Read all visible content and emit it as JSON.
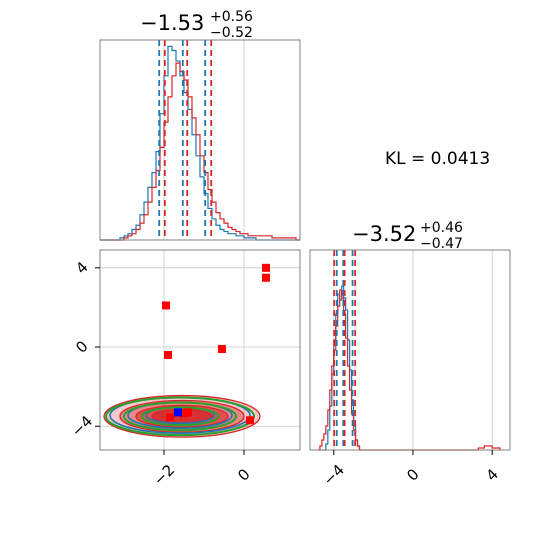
{
  "chart_data": {
    "type": "corner",
    "colors": {
      "blue": "#1f77b4",
      "red": "#d62728",
      "green": "#2ca02c",
      "marker_red": "#ff0000",
      "marker_blue": "#0000ff"
    },
    "annotation": {
      "text": "KL = 0.0413"
    },
    "param1": {
      "title": {
        "value": "−1.53",
        "plus": "+0.56",
        "minus": "−0.52"
      },
      "range": [
        -3.6,
        1.4
      ],
      "ticks": [
        -2,
        0
      ],
      "tick_labels": [
        "−2",
        "0"
      ],
      "blue_quantiles": [
        -2.12,
        -1.53,
        -0.97
      ],
      "red_quantiles": [
        -1.98,
        -1.42,
        -0.82
      ],
      "bin_centers": [
        -3.55,
        -3.45,
        -3.35,
        -3.25,
        -3.15,
        -3.05,
        -2.95,
        -2.85,
        -2.75,
        -2.65,
        -2.55,
        -2.45,
        -2.35,
        -2.25,
        -2.15,
        -2.05,
        -1.95,
        -1.85,
        -1.75,
        -1.65,
        -1.55,
        -1.45,
        -1.35,
        -1.25,
        -1.15,
        -1.05,
        -0.95,
        -0.85,
        -0.75,
        -0.65,
        -0.55,
        -0.45,
        -0.35,
        -0.25,
        -0.15,
        -0.05,
        0.05,
        0.15,
        0.25,
        0.35,
        0.45,
        0.55,
        0.65,
        0.75,
        0.85,
        0.95,
        1.05,
        1.15,
        1.25,
        1.35
      ],
      "blue_hist": [
        0,
        0,
        0,
        0,
        0,
        0.01,
        0.02,
        0.03,
        0.05,
        0.07,
        0.12,
        0.18,
        0.25,
        0.32,
        0.42,
        0.6,
        0.78,
        0.92,
        0.9,
        0.85,
        0.78,
        0.7,
        0.62,
        0.5,
        0.4,
        0.3,
        0.22,
        0.15,
        0.1,
        0.07,
        0.05,
        0.04,
        0.03,
        0.03,
        0.02,
        0.02,
        0.01,
        0.01,
        0.01,
        0,
        0,
        0,
        0,
        0,
        0,
        0,
        0,
        0,
        0,
        0
      ],
      "red_hist": [
        0,
        0,
        0,
        0,
        0,
        0,
        0.01,
        0.02,
        0.03,
        0.05,
        0.08,
        0.12,
        0.18,
        0.25,
        0.33,
        0.44,
        0.56,
        0.68,
        0.78,
        0.84,
        0.8,
        0.76,
        0.68,
        0.58,
        0.5,
        0.4,
        0.32,
        0.24,
        0.18,
        0.13,
        0.1,
        0.08,
        0.06,
        0.05,
        0.04,
        0.03,
        0.03,
        0.02,
        0.02,
        0.02,
        0.02,
        0.02,
        0.02,
        0.01,
        0.01,
        0.01,
        0.01,
        0.01,
        0.01,
        0
      ]
    },
    "param2": {
      "title": {
        "value": "−3.52",
        "plus": "+0.46",
        "minus": "−0.47"
      },
      "range": [
        -5.2,
        4.9
      ],
      "ticks": [
        -4,
        0,
        4
      ],
      "tick_labels": [
        "−4",
        "0",
        "4"
      ],
      "blue_quantiles": [
        -3.85,
        -3.52,
        -3.05
      ],
      "red_quantiles": [
        -3.98,
        -3.45,
        -2.92
      ],
      "hist_ymax": 1.0,
      "blue_hist_points": [
        [
          -4.6,
          0
        ],
        [
          -4.4,
          0.03
        ],
        [
          -4.3,
          0.1
        ],
        [
          -4.2,
          0.22
        ],
        [
          -4.1,
          0.38
        ],
        [
          -4.0,
          0.55
        ],
        [
          -3.9,
          0.68
        ],
        [
          -3.8,
          0.78
        ],
        [
          -3.7,
          0.75
        ],
        [
          -3.6,
          0.82
        ],
        [
          -3.5,
          0.76
        ],
        [
          -3.4,
          0.7
        ],
        [
          -3.3,
          0.55
        ],
        [
          -3.2,
          0.4
        ],
        [
          -3.1,
          0.25
        ],
        [
          -3.0,
          0.12
        ],
        [
          -2.9,
          0.05
        ],
        [
          -2.8,
          0.02
        ],
        [
          -2.7,
          0
        ]
      ],
      "red_hist_points": [
        [
          -4.8,
          0
        ],
        [
          -4.7,
          0.02
        ],
        [
          -4.6,
          0.05
        ],
        [
          -4.5,
          0.08
        ],
        [
          -4.4,
          0.12
        ],
        [
          -4.3,
          0.2
        ],
        [
          -4.2,
          0.3
        ],
        [
          -4.1,
          0.42
        ],
        [
          -4.0,
          0.5
        ],
        [
          -3.9,
          0.62
        ],
        [
          -3.8,
          0.72
        ],
        [
          -3.7,
          0.8
        ],
        [
          -3.6,
          0.76
        ],
        [
          -3.5,
          0.68
        ],
        [
          -3.4,
          0.56
        ],
        [
          -3.3,
          0.42
        ],
        [
          -3.2,
          0.3
        ],
        [
          -3.1,
          0.18
        ],
        [
          -3.0,
          0.1
        ],
        [
          -2.9,
          0.05
        ],
        [
          -2.8,
          0.02
        ],
        [
          -2.7,
          0
        ],
        [
          3.2,
          0
        ],
        [
          3.3,
          0.01
        ],
        [
          3.6,
          0.02
        ],
        [
          4.0,
          0.01
        ],
        [
          4.2,
          0.01
        ],
        [
          4.4,
          0
        ]
      ]
    },
    "joint": {
      "red_markers": [
        [
          -1.95,
          2.1
        ],
        [
          -1.9,
          -0.4
        ],
        [
          -0.55,
          -0.1
        ],
        [
          0.55,
          4.0
        ],
        [
          0.55,
          3.5
        ],
        [
          0.15,
          -3.7
        ],
        [
          -1.5,
          -3.35
        ],
        [
          -1.85,
          -3.55
        ],
        [
          -1.4,
          -3.3
        ]
      ],
      "blue_marker": [
        -1.65,
        -3.3
      ],
      "red_contours": [
        {
          "cx": -1.55,
          "cy": -3.5,
          "rx": 1.95,
          "ry": 1.05,
          "opacity": 0.25
        },
        {
          "cx": -1.55,
          "cy": -3.5,
          "rx": 1.55,
          "ry": 0.8,
          "opacity": 0.4
        },
        {
          "cx": -1.55,
          "cy": -3.5,
          "rx": 1.15,
          "ry": 0.55,
          "opacity": 0.55
        },
        {
          "cx": -1.55,
          "cy": -3.5,
          "rx": 0.75,
          "ry": 0.35,
          "opacity": 0.75
        }
      ],
      "blue_contours": [
        {
          "cx": -1.6,
          "cy": -3.45,
          "rx": 1.75,
          "ry": 0.9
        },
        {
          "cx": -1.6,
          "cy": -3.45,
          "rx": 1.3,
          "ry": 0.65
        },
        {
          "cx": -1.6,
          "cy": -3.45,
          "rx": 0.85,
          "ry": 0.4
        }
      ],
      "green_contours": [
        {
          "cx": -1.6,
          "cy": -3.5,
          "rx": 1.85,
          "ry": 0.95
        },
        {
          "cx": -1.6,
          "cy": -3.5,
          "rx": 1.4,
          "ry": 0.7
        },
        {
          "cx": -1.6,
          "cy": -3.5,
          "rx": 0.95,
          "ry": 0.45
        }
      ]
    }
  }
}
